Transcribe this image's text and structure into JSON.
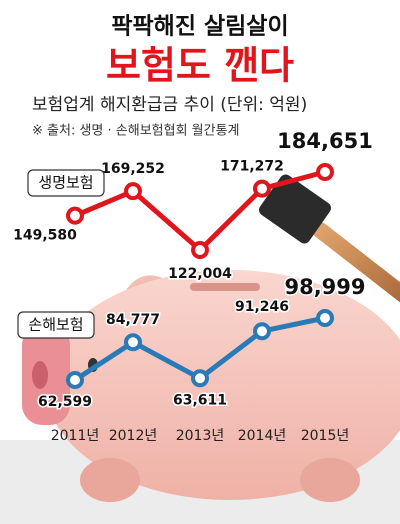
{
  "chart_data": {
    "type": "line",
    "title": "팍팍해진 살림살이",
    "subtitle": "보험도 깬다",
    "description": "보험업계 해지환급금 추이 (단위: 억원)",
    "source": "※ 출처: 생명 · 손해보험협회 월간통계",
    "categories": [
      "2011년",
      "2012년",
      "2013년",
      "2014년",
      "2015년"
    ],
    "series": [
      {
        "name": "생명보험",
        "color": "#e0161c",
        "values": [
          149580,
          169252,
          122004,
          171272,
          184651
        ],
        "value_labels": [
          "149,580",
          "169,252",
          "122,004",
          "171,272",
          "184,651"
        ]
      },
      {
        "name": "손해보험",
        "color": "#2a7ab8",
        "values": [
          62599,
          84777,
          63611,
          91246,
          98999
        ],
        "value_labels": [
          "62,599",
          "84,777",
          "63,611",
          "91,246",
          "98,999"
        ]
      }
    ]
  }
}
